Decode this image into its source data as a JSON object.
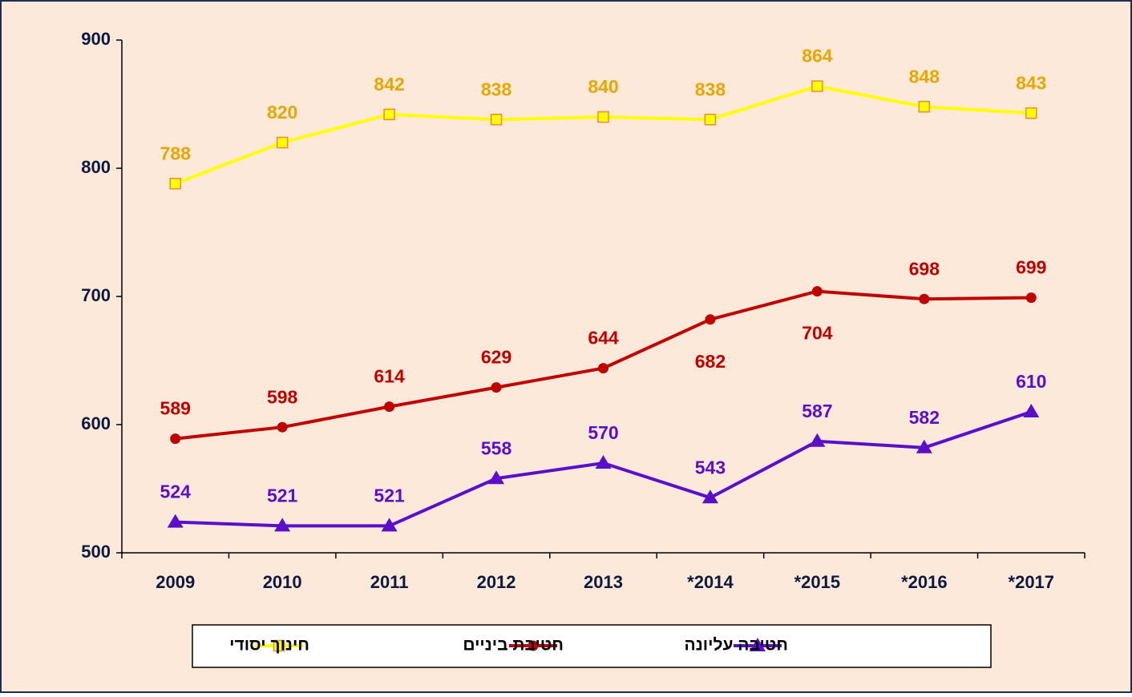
{
  "chart_data": {
    "type": "line",
    "categories": [
      "2009",
      "2010",
      "2011",
      "2012",
      "2013",
      "*2014",
      "*2015",
      "*2016",
      "*2017"
    ],
    "series": [
      {
        "name": "חינוך יסודי",
        "color": "#ffff00",
        "label_color": "#e6a800",
        "marker": "square",
        "marker_edge": "#f08c28",
        "values": [
          788,
          820,
          842,
          838,
          840,
          838,
          864,
          848,
          843
        ]
      },
      {
        "name": "חטיבת ביניים",
        "color": "#c00000",
        "label_color": "#c00000",
        "marker": "circle",
        "values": [
          589,
          598,
          614,
          629,
          644,
          682,
          704,
          698,
          699
        ]
      },
      {
        "name": "חטיבה עליונה",
        "color": "#5a0fc8",
        "label_color": "#5a0fc8",
        "marker": "triangle",
        "values": [
          524,
          521,
          521,
          558,
          570,
          543,
          587,
          582,
          610
        ]
      }
    ],
    "ylim": [
      500,
      900
    ],
    "yticks": [
      500,
      600,
      700,
      800,
      900
    ],
    "grid": false,
    "legend": "bottom"
  }
}
